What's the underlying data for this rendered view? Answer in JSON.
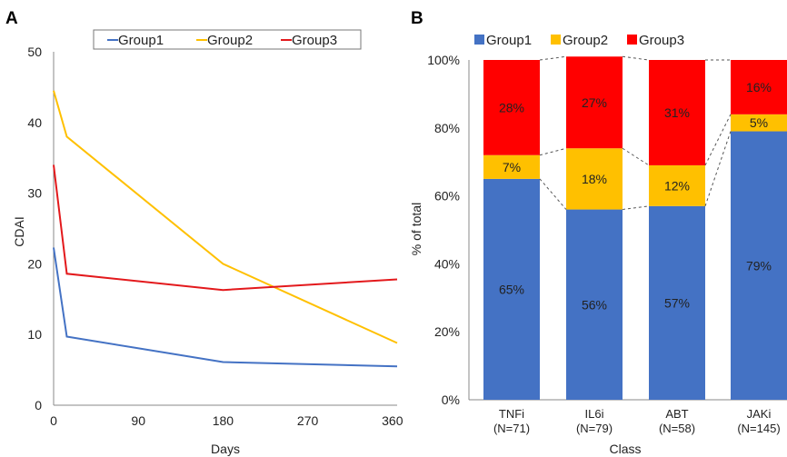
{
  "chart_data": [
    {
      "panel": "A",
      "type": "line",
      "xlabel": "Days",
      "ylabel": "CDAI",
      "xlim": [
        0,
        365
      ],
      "ylim": [
        0,
        50
      ],
      "xticks": [
        0,
        90,
        180,
        270,
        360
      ],
      "yticks": [
        0,
        10,
        20,
        30,
        40,
        50
      ],
      "legend_position": "top",
      "series": [
        {
          "name": "Group1",
          "color": "#4472C4",
          "x": [
            0,
            14,
            180,
            365
          ],
          "y": [
            22.3,
            9.7,
            6.1,
            5.5
          ]
        },
        {
          "name": "Group2",
          "color": "#FFC000",
          "x": [
            0,
            14,
            180,
            365
          ],
          "y": [
            44.5,
            38,
            20,
            8.8
          ]
        },
        {
          "name": "Group3",
          "color": "#E3191C",
          "x": [
            0,
            14,
            180,
            365
          ],
          "y": [
            34,
            18.6,
            16.3,
            17.8
          ]
        }
      ]
    },
    {
      "panel": "B",
      "type": "bar",
      "stacked": true,
      "xlabel": "Class",
      "ylabel": "% of total",
      "ylim": [
        0,
        100
      ],
      "yticks": [
        "0%",
        "20%",
        "40%",
        "60%",
        "80%",
        "100%"
      ],
      "legend_position": "top",
      "categories": [
        "TNFi",
        "IL6i",
        "ABT",
        "JAKi"
      ],
      "category_n": [
        "(N=71)",
        "(N=79)",
        "(N=58)",
        "(N=145)"
      ],
      "series": [
        {
          "name": "Group1",
          "color": "#4472C4",
          "values": [
            65,
            56,
            57,
            79
          ],
          "labels": [
            "65%",
            "56%",
            "57%",
            "79%"
          ]
        },
        {
          "name": "Group2",
          "color": "#FFC000",
          "values": [
            7,
            18,
            12,
            5
          ],
          "labels": [
            "7%",
            "18%",
            "12%",
            "5%"
          ]
        },
        {
          "name": "Group3",
          "color": "#FF0000",
          "values": [
            28,
            27,
            31,
            16
          ],
          "labels": [
            "28%",
            "27%",
            "31%",
            "16%"
          ]
        }
      ]
    }
  ]
}
